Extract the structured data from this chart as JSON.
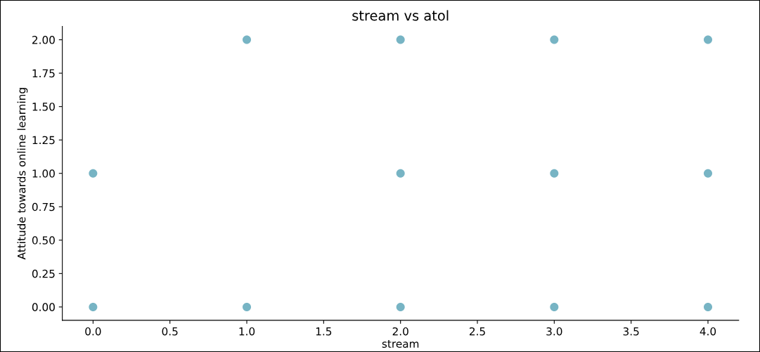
{
  "chart_data": {
    "type": "scatter",
    "title": "stream vs atol",
    "xlabel": "stream",
    "ylabel": "Attitude towards online learning",
    "x": [
      0,
      0,
      1,
      1,
      2,
      2,
      2,
      3,
      3,
      3,
      4,
      4,
      4
    ],
    "values": [
      0,
      1,
      0,
      2,
      0,
      1,
      2,
      0,
      1,
      2,
      0,
      1,
      2
    ],
    "color": "#4a9bb0",
    "marker": "circle",
    "grid": false,
    "legend": false,
    "xlim": [
      -0.2,
      4.2
    ],
    "ylim": [
      -0.1,
      2.1
    ],
    "xticks": [
      {
        "value": 0,
        "label": "0.0"
      },
      {
        "value": 0.5,
        "label": "0.5"
      },
      {
        "value": 1,
        "label": "1.0"
      },
      {
        "value": 1.5,
        "label": "1.5"
      },
      {
        "value": 2,
        "label": "2.0"
      },
      {
        "value": 2.5,
        "label": "2.5"
      },
      {
        "value": 3,
        "label": "3.0"
      },
      {
        "value": 3.5,
        "label": "3.5"
      },
      {
        "value": 4,
        "label": "4.0"
      }
    ],
    "yticks": [
      {
        "value": 0,
        "label": "0.00"
      },
      {
        "value": 0.25,
        "label": "0.25"
      },
      {
        "value": 0.5,
        "label": "0.50"
      },
      {
        "value": 0.75,
        "label": "0.75"
      },
      {
        "value": 1,
        "label": "1.00"
      },
      {
        "value": 1.25,
        "label": "1.25"
      },
      {
        "value": 1.5,
        "label": "1.50"
      },
      {
        "value": 1.75,
        "label": "1.75"
      },
      {
        "value": 2,
        "label": "2.00"
      }
    ]
  }
}
